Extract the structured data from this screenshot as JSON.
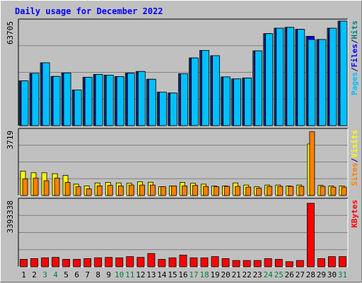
{
  "chart_data": {
    "type": "bar",
    "title": "Daily usage for December 2022",
    "categories": [
      "1",
      "2",
      "3",
      "4",
      "5",
      "6",
      "7",
      "8",
      "9",
      "10",
      "11",
      "12",
      "13",
      "14",
      "15",
      "16",
      "17",
      "18",
      "19",
      "20",
      "21",
      "22",
      "23",
      "24",
      "25",
      "26",
      "27",
      "28",
      "29",
      "30",
      "31"
    ],
    "weekend_days": [
      "3",
      "4",
      "10",
      "11",
      "17",
      "18",
      "24",
      "25",
      "31"
    ],
    "panels": [
      {
        "id": "top",
        "max_label": "63705",
        "ylim": [
          0,
          63705
        ],
        "legend": [
          {
            "text": "Pages",
            "color": "#00c0ff"
          },
          {
            "text": "/",
            "color": "#000080"
          },
          {
            "text": "Files",
            "color": "#0000ff"
          },
          {
            "text": "/",
            "color": "#000080"
          },
          {
            "text": "Hits",
            "color": "#008080"
          }
        ],
        "series": [
          {
            "name": "Hits",
            "color": "#008080",
            "values": [
              27300,
              31900,
              38300,
              30000,
              32100,
              21800,
              29500,
              31200,
              30800,
              29900,
              32000,
              33000,
              28300,
              20500,
              19900,
              31700,
              41300,
              45900,
              42600,
              29700,
              28500,
              29000,
              45600,
              56100,
              59400,
              59900,
              58700,
              54500,
              52500,
              59400,
              63705
            ]
          },
          {
            "name": "Files",
            "color": "#0000ff",
            "values": [
              27300,
              31900,
              38300,
              30000,
              32100,
              21800,
              29500,
              31200,
              30800,
              29900,
              32000,
              33000,
              28300,
              20500,
              19900,
              31700,
              41300,
              45900,
              42600,
              29700,
              28500,
              29000,
              45600,
              56100,
              59400,
              59900,
              58700,
              54500,
              52500,
              59400,
              63705
            ]
          },
          {
            "name": "Pages",
            "color": "#00c0ff",
            "values": [
              27300,
              31900,
              38300,
              30000,
              32100,
              21800,
              29500,
              31200,
              30800,
              29900,
              32000,
              33000,
              28300,
              20500,
              19900,
              31700,
              41300,
              45900,
              42600,
              29700,
              28500,
              29000,
              45600,
              56100,
              59400,
              59900,
              58700,
              52500,
              52500,
              59400,
              63705
            ]
          }
        ]
      },
      {
        "id": "middle",
        "max_label": "3719",
        "ylim": [
          0,
          3719
        ],
        "legend": [
          {
            "text": "Sites",
            "color": "#ff8000"
          },
          {
            "text": "/",
            "color": "#000080"
          },
          {
            "text": "Visits",
            "color": "#ffff00"
          }
        ],
        "series": [
          {
            "name": "Visits",
            "color": "#ffff00",
            "values": [
              1400,
              1300,
              1300,
              1250,
              1150,
              650,
              550,
              720,
              750,
              720,
              700,
              780,
              760,
              500,
              550,
              750,
              700,
              650,
              550,
              550,
              720,
              600,
              500,
              600,
              600,
              550,
              600,
              2950,
              580,
              550,
              550
            ]
          },
          {
            "name": "Sites",
            "color": "#ff8000",
            "values": [
              950,
              1000,
              850,
              1000,
              750,
              500,
              380,
              550,
              580,
              550,
              600,
              600,
              600,
              500,
              550,
              550,
              580,
              520,
              500,
              520,
              520,
              480,
              420,
              520,
              520,
              520,
              520,
              3650,
              520,
              480,
              480
            ]
          }
        ]
      },
      {
        "id": "bottom",
        "max_label": "3393338",
        "ylim": [
          0,
          3393338
        ],
        "legend": [
          {
            "text": "KBytes",
            "color": "#ff0000"
          }
        ],
        "series": [
          {
            "name": "KBytes",
            "color": "#ff0000",
            "values": [
              380000,
              420000,
              460000,
              480000,
              380000,
              380000,
              420000,
              460000,
              480000,
              460000,
              520000,
              480000,
              680000,
              380000,
              460000,
              600000,
              460000,
              460000,
              520000,
              420000,
              320000,
              320000,
              320000,
              420000,
              380000,
              260000,
              320000,
              3250000,
              420000,
              520000,
              520000
            ]
          }
        ]
      }
    ]
  }
}
